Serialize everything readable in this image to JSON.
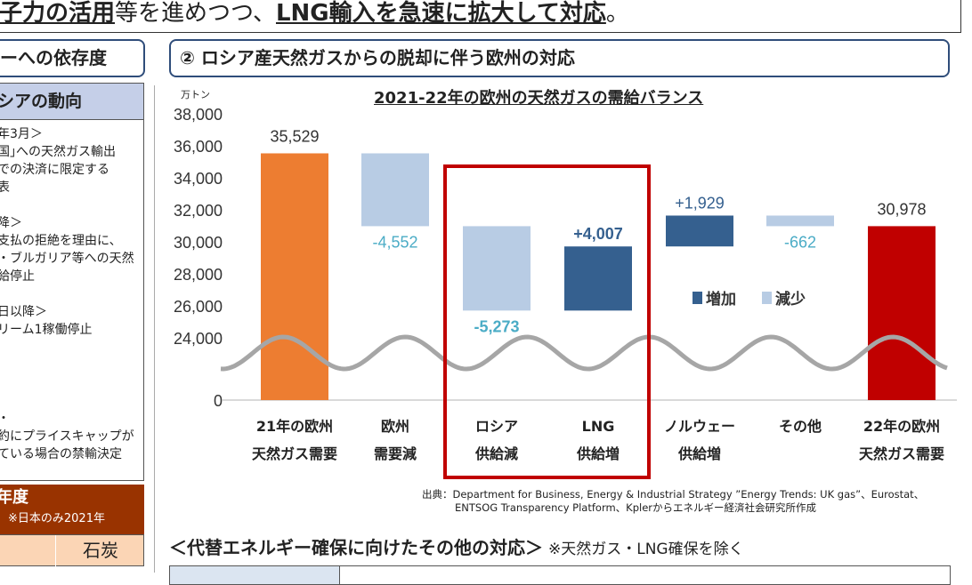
{
  "top_text": {
    "part1": "子力の活用",
    "part2": "等を進めつつ、",
    "part3": "LNG輸入を急速に拡大して対応",
    "part4": "。"
  },
  "left": {
    "tab": "ーへの依存度",
    "panel_header": "シアの動向",
    "lines": [
      "年3月＞",
      "国｣への天然ガス輸出",
      "での決済に限定する",
      "表",
      "",
      "降＞",
      "支払の拒絶を理由に、",
      "・ブルガリア等への天然",
      "給停止",
      "",
      "日以降＞",
      "リーム1稼働停止",
      "",
      "",
      "",
      "",
      "・",
      "約にプライスキャップが",
      "ている場合の禁輸決定"
    ],
    "bottom_header": "年度",
    "bottom_sub": "）※日本のみ2021年",
    "table_cell": "石炭"
  },
  "section_title": "② ロシア産天然ガスからの脱却に伴う欧州の対応",
  "chart_data": {
    "type": "bar",
    "subtype": "waterfall",
    "title": "2021-22年の欧州の天然ガスの需給バランス",
    "unit_label": "万トン",
    "categories": [
      [
        "21年の欧州",
        "天然ガス需要"
      ],
      [
        "欧州",
        "需要減"
      ],
      [
        "ロシア",
        "供給減"
      ],
      [
        "LNG",
        "供給増"
      ],
      [
        "ノルウェー",
        "供給増"
      ],
      [
        "その他",
        ""
      ],
      [
        "22年の欧州",
        "天然ガス需要"
      ]
    ],
    "values": [
      35529,
      -4552,
      -5273,
      4007,
      1929,
      -662,
      30978
    ],
    "labels": [
      "35,529",
      "-4,552",
      "-5,273",
      "+4,007",
      "+1,929",
      "-662",
      "30,978"
    ],
    "kinds": [
      "total",
      "decrease",
      "decrease",
      "increase",
      "increase",
      "decrease",
      "total"
    ],
    "yticks": [
      "38,000",
      "36,000",
      "34,000",
      "32,000",
      "30,000",
      "28,000",
      "26,000",
      "24,000",
      "0"
    ],
    "ylim": [
      24000,
      38000
    ],
    "axis_break": true,
    "legend": [
      {
        "name": "増加",
        "color": "#35608f"
      },
      {
        "name": "減少",
        "color": "#b8cce4"
      }
    ],
    "legend_placement": "center-right",
    "colors": {
      "total_start": "#ed7d31",
      "total_end": "#c00000",
      "increase": "#35608f",
      "decrease": "#b8cce4",
      "decrease_label": "#4bacc6",
      "increase_label": "#35608f",
      "highlight_box": "#c00000"
    },
    "highlight": [
      "ロシア",
      "LNG"
    ]
  },
  "source": {
    "line1": "出典：Department for Business, Energy & Industrial Strategy ”Energy Trends: UK gas”、Eurostat、",
    "line2": "ENTSOG Transparency Platform、Kplerからエネルギー経済社会研究所作成"
  },
  "bottom": {
    "heading": "＜代替エネルギー確保に向けたその他の対応＞",
    "note": "※天然ガス・LNG確保を除く"
  }
}
